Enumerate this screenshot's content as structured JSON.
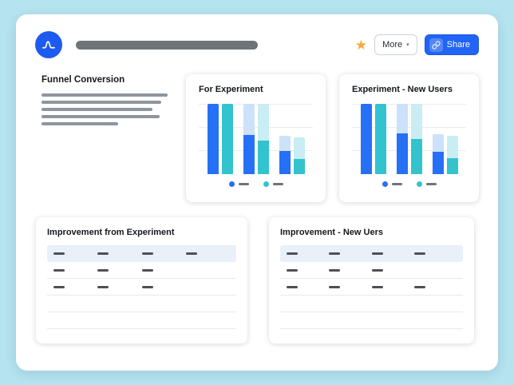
{
  "colors": {
    "page_background": "#b6e3f0",
    "accent_blue": "#2264f5",
    "star_gold": "#f6a83b",
    "series": {
      "control": {
        "dark": "#2570f5",
        "light": "#cce2fa"
      },
      "variant": {
        "dark": "#33c3cf",
        "light": "#c9edf3"
      }
    }
  },
  "header": {
    "more_label": "More",
    "more_caret_glyph": "▾",
    "share_label": "Share",
    "star_glyph": "★"
  },
  "page": {
    "title": "Funnel Conversion",
    "skeleton_line_widths": [
      158,
      150,
      139,
      148,
      96
    ]
  },
  "charts": [
    {
      "title": "For Experiment",
      "chart_data": {
        "type": "bar",
        "legend": [
          "control",
          "variant"
        ],
        "steps": [
          {
            "bars": [
              {
                "series": "control",
                "total": 100,
                "converted": 100
              },
              {
                "series": "variant",
                "total": 100,
                "converted": 100
              }
            ]
          },
          {
            "bars": [
              {
                "series": "control",
                "total": 100,
                "converted": 56
              },
              {
                "series": "variant",
                "total": 100,
                "converted": 48
              }
            ]
          },
          {
            "bars": [
              {
                "series": "control",
                "total": 55,
                "converted": 33
              },
              {
                "series": "variant",
                "total": 52,
                "converted": 22
              }
            ]
          }
        ]
      }
    },
    {
      "title": "Experiment - New Users",
      "chart_data": {
        "type": "bar",
        "legend": [
          "control",
          "variant"
        ],
        "steps": [
          {
            "bars": [
              {
                "series": "control",
                "total": 100,
                "converted": 100
              },
              {
                "series": "variant",
                "total": 100,
                "converted": 100
              }
            ]
          },
          {
            "bars": [
              {
                "series": "control",
                "total": 100,
                "converted": 58
              },
              {
                "series": "variant",
                "total": 100,
                "converted": 50
              }
            ]
          },
          {
            "bars": [
              {
                "series": "control",
                "total": 57,
                "converted": 32
              },
              {
                "series": "variant",
                "total": 54,
                "converted": 23
              }
            ]
          }
        ]
      }
    }
  ],
  "tables": [
    {
      "title": "Improvement from Experiment",
      "rows": [
        [
          1,
          1,
          1,
          1
        ],
        [
          1,
          1,
          1,
          0
        ],
        [
          1,
          1,
          1,
          0
        ]
      ],
      "empty_rows": 2
    },
    {
      "title": "Improvement - New Uers",
      "rows": [
        [
          1,
          1,
          1,
          1
        ],
        [
          1,
          1,
          1,
          0
        ],
        [
          1,
          1,
          1,
          1
        ]
      ],
      "empty_rows": 2
    }
  ]
}
